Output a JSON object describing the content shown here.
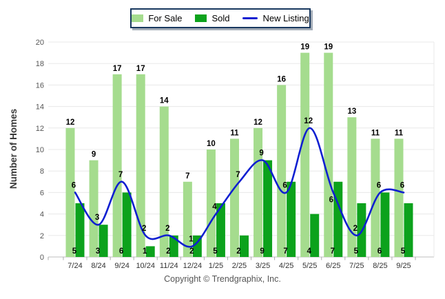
{
  "chart_data": {
    "type": "bar",
    "categories": [
      "7/24",
      "8/24",
      "9/24",
      "10/24",
      "11/24",
      "12/24",
      "1/25",
      "2/25",
      "3/25",
      "4/25",
      "5/25",
      "6/25",
      "7/25",
      "8/25",
      "9/25"
    ],
    "series": [
      {
        "name": "For Sale",
        "kind": "bar",
        "color": "#A5DC8E",
        "values": [
          12,
          9,
          17,
          17,
          14,
          7,
          10,
          11,
          12,
          16,
          19,
          19,
          13,
          11,
          11
        ]
      },
      {
        "name": "Sold",
        "kind": "bar",
        "color": "#0CA21C",
        "values": [
          5,
          3,
          6,
          1,
          2,
          2,
          5,
          2,
          9,
          7,
          4,
          7,
          5,
          6,
          5
        ]
      },
      {
        "name": "New Listing",
        "kind": "line",
        "color": "#0F1FD1",
        "values": [
          6,
          3,
          7,
          2,
          2,
          1,
          4,
          7,
          9,
          6,
          12,
          6,
          2,
          6,
          6
        ]
      }
    ],
    "title": "",
    "xlabel": "",
    "ylabel": "Number of Homes",
    "ylim": [
      0,
      20
    ],
    "ytick_step": 2,
    "grid": "horizontal",
    "legend_position": "top-center",
    "line_label_offsets": {
      "11": [
        -3,
        14
      ]
    }
  },
  "footer": {
    "copyright": "Copyright © Trendgraphix, Inc."
  },
  "colors": {
    "grid": "#e8e8e8",
    "axis": "#bdbdbd",
    "tick_text": "#4a4a4a",
    "value_text": "#000000",
    "legend_border": "#17375E"
  }
}
